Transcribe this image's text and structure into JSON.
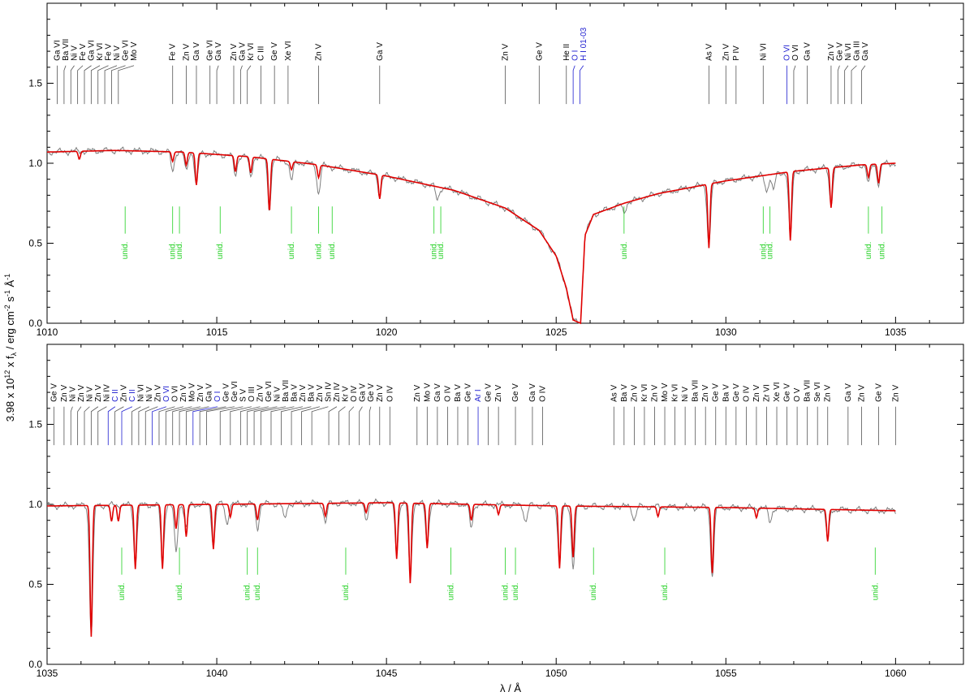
{
  "colors": {
    "observed": "#7f7f7f",
    "model": "#e00000",
    "ism_marker": "#2020d0",
    "unid_marker": "#20d020",
    "id_marker": "#555555",
    "axis": "#000000"
  },
  "labels": {
    "ylabel_prefix": "3.98 x 10",
    "ylabel_exp": "12",
    "ylabel_mid": " x f",
    "ylabel_sub": "λ",
    "ylabel_unit": " / erg cm",
    "ylabel_exp2": "-2",
    "ylabel_s": " s",
    "ylabel_exp3": "-1",
    "ylabel_A": " Å",
    "ylabel_exp4": "-1",
    "xlabel": "λ / Å",
    "unid": "unid."
  },
  "chart_data": [
    {
      "type": "line",
      "panel": "top",
      "xlim": [
        1010,
        1037
      ],
      "ylim": [
        0,
        2.0
      ],
      "xticks": [
        1010,
        1015,
        1020,
        1025,
        1030,
        1035
      ],
      "yticks": [
        0.0,
        0.5,
        1.0,
        1.5
      ],
      "ytick_labels": [
        "0.0",
        "0.5",
        "1.0",
        "1.5"
      ],
      "grid": false,
      "series": [
        {
          "role": "observed",
          "color": "#7f7f7f"
        },
        {
          "role": "model",
          "color": "#e00000"
        }
      ],
      "continuum_profile": [
        [
          1010,
          1.07
        ],
        [
          1012,
          1.08
        ],
        [
          1014,
          1.07
        ],
        [
          1016,
          1.04
        ],
        [
          1018,
          0.99
        ],
        [
          1020,
          0.92
        ],
        [
          1022,
          0.83
        ],
        [
          1023.5,
          0.72
        ],
        [
          1024.5,
          0.58
        ],
        [
          1025.0,
          0.42
        ],
        [
          1025.3,
          0.22
        ],
        [
          1025.5,
          0.02
        ],
        [
          1025.72,
          0.0
        ],
        [
          1025.85,
          0.55
        ],
        [
          1026.1,
          0.68
        ],
        [
          1027,
          0.75
        ],
        [
          1028,
          0.81
        ],
        [
          1029,
          0.85
        ],
        [
          1030,
          0.89
        ],
        [
          1031,
          0.92
        ],
        [
          1032,
          0.95
        ],
        [
          1033,
          0.97
        ],
        [
          1034,
          0.99
        ],
        [
          1035,
          1.0
        ]
      ],
      "model_absorption_lines": [
        [
          1014.4,
          0.2
        ],
        [
          1015.55,
          0.1
        ],
        [
          1016.55,
          0.33
        ],
        [
          1016.0,
          0.1
        ],
        [
          1019.8,
          0.15
        ],
        [
          1029.5,
          0.4
        ],
        [
          1031.9,
          0.43
        ],
        [
          1033.1,
          0.25
        ],
        [
          1034.5,
          0.12
        ],
        [
          1010.95,
          0.05
        ],
        [
          1013.7,
          0.06
        ],
        [
          1014.1,
          0.08
        ],
        [
          1017.2,
          0.05
        ],
        [
          1018.0,
          0.08
        ],
        [
          1034.2,
          0.08
        ]
      ],
      "observed_absorption_lines": [
        [
          1014.4,
          0.2
        ],
        [
          1015.55,
          0.12
        ],
        [
          1016.55,
          0.3
        ],
        [
          1016.0,
          0.12
        ],
        [
          1019.8,
          0.12
        ],
        [
          1029.5,
          0.38
        ],
        [
          1031.9,
          0.4
        ],
        [
          1033.1,
          0.22
        ],
        [
          1034.5,
          0.12
        ],
        [
          1013.7,
          0.12
        ],
        [
          1014.1,
          0.12
        ],
        [
          1017.2,
          0.12
        ],
        [
          1018.0,
          0.18
        ],
        [
          1021.5,
          0.08
        ],
        [
          1027.0,
          0.06
        ],
        [
          1031.2,
          0.1
        ],
        [
          1031.4,
          0.1
        ],
        [
          1034.2,
          0.12
        ]
      ],
      "line_ids": [
        {
          "x": 1010.3,
          "label": "Ga VI",
          "kind": "id"
        },
        {
          "x": 1010.5,
          "label": "Ba VII",
          "kind": "id"
        },
        {
          "x": 1010.7,
          "label": "Ni V",
          "kind": "id"
        },
        {
          "x": 1010.9,
          "label": "Fe V",
          "kind": "id"
        },
        {
          "x": 1011.1,
          "label": "Ga VI",
          "kind": "id"
        },
        {
          "x": 1011.3,
          "label": "Kr VI",
          "kind": "id"
        },
        {
          "x": 1011.5,
          "label": "Fe V",
          "kind": "id"
        },
        {
          "x": 1011.7,
          "label": "Ni V",
          "kind": "id"
        },
        {
          "x": 1011.9,
          "label": "Ge VI",
          "kind": "id"
        },
        {
          "x": 1012.1,
          "label": "Mo V",
          "kind": "id"
        },
        {
          "x": 1013.7,
          "label": "Fe V",
          "kind": "id"
        },
        {
          "x": 1014.1,
          "label": "Zn V",
          "kind": "id"
        },
        {
          "x": 1014.4,
          "label": "Ga V",
          "kind": "id"
        },
        {
          "x": 1014.8,
          "label": "Ge VI",
          "kind": "id"
        },
        {
          "x": 1015.0,
          "label": "Ga V",
          "kind": "id"
        },
        {
          "x": 1015.5,
          "label": "Zn V",
          "kind": "id"
        },
        {
          "x": 1015.7,
          "label": "Ga V",
          "kind": "id"
        },
        {
          "x": 1015.9,
          "label": "Kr VI",
          "kind": "id"
        },
        {
          "x": 1016.3,
          "label": "C III",
          "kind": "id"
        },
        {
          "x": 1016.7,
          "label": "Ge V",
          "kind": "id"
        },
        {
          "x": 1017.1,
          "label": "Xe VI",
          "kind": "id"
        },
        {
          "x": 1018.0,
          "label": "Zn V",
          "kind": "id"
        },
        {
          "x": 1019.8,
          "label": "Ga V",
          "kind": "id"
        },
        {
          "x": 1023.5,
          "label": "Zn V",
          "kind": "id"
        },
        {
          "x": 1024.5,
          "label": "Ge V",
          "kind": "id"
        },
        {
          "x": 1025.3,
          "label": "He II",
          "kind": "id"
        },
        {
          "x": 1025.5,
          "label": "O I",
          "kind": "ism"
        },
        {
          "x": 1025.7,
          "label": "H I 01-03",
          "kind": "ism"
        },
        {
          "x": 1029.5,
          "label": "As V",
          "kind": "id"
        },
        {
          "x": 1030.0,
          "label": "Zn V",
          "kind": "id"
        },
        {
          "x": 1030.3,
          "label": "P IV",
          "kind": "id"
        },
        {
          "x": 1031.1,
          "label": "Ni VI",
          "kind": "id"
        },
        {
          "x": 1031.8,
          "label": "O VI",
          "kind": "ism"
        },
        {
          "x": 1032.0,
          "label": "O VI",
          "kind": "id"
        },
        {
          "x": 1032.4,
          "label": "Ga V",
          "kind": "id"
        },
        {
          "x": 1033.1,
          "label": "Zn V",
          "kind": "id"
        },
        {
          "x": 1033.3,
          "label": "Ge V",
          "kind": "id"
        },
        {
          "x": 1033.5,
          "label": "Ni VI",
          "kind": "id"
        },
        {
          "x": 1033.7,
          "label": "Ga III",
          "kind": "id"
        },
        {
          "x": 1034.0,
          "label": "Ga V",
          "kind": "id"
        }
      ],
      "unid_positions": [
        1012.3,
        1013.7,
        1013.9,
        1015.1,
        1017.2,
        1018.0,
        1018.4,
        1021.4,
        1021.6,
        1027.0,
        1031.1,
        1031.3,
        1034.2,
        1034.6
      ]
    },
    {
      "type": "line",
      "panel": "bottom",
      "xlim": [
        1035,
        1062
      ],
      "ylim": [
        0,
        2.0
      ],
      "xticks": [
        1035,
        1040,
        1045,
        1050,
        1055,
        1060
      ],
      "yticks": [
        0.0,
        0.5,
        1.0,
        1.5
      ],
      "ytick_labels": [
        "0.0",
        "0.5",
        "1.0",
        "1.5"
      ],
      "grid": false,
      "xlabel": "λ / Å",
      "series": [
        {
          "role": "observed",
          "color": "#7f7f7f"
        },
        {
          "role": "model",
          "color": "#e00000"
        }
      ],
      "continuum_profile": [
        [
          1035,
          0.99
        ],
        [
          1040,
          1.0
        ],
        [
          1045,
          1.01
        ],
        [
          1050,
          0.99
        ],
        [
          1055,
          0.98
        ],
        [
          1060,
          0.96
        ]
      ],
      "model_absorption_lines": [
        [
          1036.3,
          0.82
        ],
        [
          1037.6,
          0.4
        ],
        [
          1038.4,
          0.4
        ],
        [
          1038.8,
          0.15
        ],
        [
          1039.1,
          0.2
        ],
        [
          1039.9,
          0.28
        ],
        [
          1041.2,
          0.1
        ],
        [
          1043.2,
          0.08
        ],
        [
          1045.3,
          0.35
        ],
        [
          1045.7,
          0.5
        ],
        [
          1046.2,
          0.28
        ],
        [
          1047.5,
          0.1
        ],
        [
          1050.1,
          0.39
        ],
        [
          1050.5,
          0.32
        ],
        [
          1054.6,
          0.41
        ],
        [
          1058.0,
          0.2
        ],
        [
          1036.9,
          0.1
        ],
        [
          1037.1,
          0.1
        ],
        [
          1040.4,
          0.08
        ],
        [
          1044.4,
          0.06
        ],
        [
          1048.3,
          0.06
        ],
        [
          1053.0,
          0.06
        ],
        [
          1055.9,
          0.06
        ]
      ],
      "observed_absorption_lines": [
        [
          1036.3,
          0.8
        ],
        [
          1037.6,
          0.35
        ],
        [
          1038.4,
          0.35
        ],
        [
          1038.8,
          0.3
        ],
        [
          1039.1,
          0.15
        ],
        [
          1039.9,
          0.25
        ],
        [
          1041.2,
          0.15
        ],
        [
          1043.2,
          0.12
        ],
        [
          1045.3,
          0.3
        ],
        [
          1045.7,
          0.45
        ],
        [
          1046.2,
          0.25
        ],
        [
          1047.5,
          0.15
        ],
        [
          1050.1,
          0.35
        ],
        [
          1050.5,
          0.38
        ],
        [
          1054.6,
          0.42
        ],
        [
          1058.0,
          0.18
        ],
        [
          1040.3,
          0.12
        ],
        [
          1042.0,
          0.1
        ],
        [
          1044.4,
          0.1
        ],
        [
          1049.1,
          0.1
        ],
        [
          1052.3,
          0.08
        ],
        [
          1056.3,
          0.08
        ]
      ],
      "line_ids": [
        {
          "x": 1035.2,
          "label": "Ge V",
          "kind": "id"
        },
        {
          "x": 1035.5,
          "label": "Zn V",
          "kind": "id"
        },
        {
          "x": 1035.7,
          "label": "Ni V",
          "kind": "id"
        },
        {
          "x": 1035.9,
          "label": "Zn V",
          "kind": "id"
        },
        {
          "x": 1036.1,
          "label": "Ni V",
          "kind": "id"
        },
        {
          "x": 1036.3,
          "label": "Zn V",
          "kind": "id"
        },
        {
          "x": 1036.5,
          "label": "Ni IV",
          "kind": "id"
        },
        {
          "x": 1036.8,
          "label": "C II",
          "kind": "ism"
        },
        {
          "x": 1037.0,
          "label": "Zn V",
          "kind": "id"
        },
        {
          "x": 1037.2,
          "label": "C II",
          "kind": "ism"
        },
        {
          "x": 1037.5,
          "label": "Ni VI",
          "kind": "id"
        },
        {
          "x": 1037.7,
          "label": "Ni V",
          "kind": "id"
        },
        {
          "x": 1037.9,
          "label": "Zn V",
          "kind": "id"
        },
        {
          "x": 1038.1,
          "label": "O VI",
          "kind": "ism"
        },
        {
          "x": 1038.3,
          "label": "O VI",
          "kind": "id"
        },
        {
          "x": 1038.5,
          "label": "Zn V",
          "kind": "id"
        },
        {
          "x": 1038.7,
          "label": "Mo V",
          "kind": "id"
        },
        {
          "x": 1038.9,
          "label": "Zn V",
          "kind": "id"
        },
        {
          "x": 1039.1,
          "label": "Ga V",
          "kind": "id"
        },
        {
          "x": 1039.3,
          "label": "O I",
          "kind": "ism"
        },
        {
          "x": 1039.5,
          "label": "Ge V",
          "kind": "id"
        },
        {
          "x": 1039.7,
          "label": "Ge VI",
          "kind": "id"
        },
        {
          "x": 1040.1,
          "label": "S V",
          "kind": "id"
        },
        {
          "x": 1040.4,
          "label": "O III",
          "kind": "id"
        },
        {
          "x": 1040.7,
          "label": "Zn V",
          "kind": "id"
        },
        {
          "x": 1040.9,
          "label": "Ge VI",
          "kind": "id"
        },
        {
          "x": 1041.1,
          "label": "Ni V",
          "kind": "id"
        },
        {
          "x": 1041.3,
          "label": "Ba VII",
          "kind": "id"
        },
        {
          "x": 1041.6,
          "label": "Ba V",
          "kind": "id"
        },
        {
          "x": 1041.9,
          "label": "Zn V",
          "kind": "id"
        },
        {
          "x": 1042.2,
          "label": "Ba V",
          "kind": "id"
        },
        {
          "x": 1042.5,
          "label": "Zn V",
          "kind": "id"
        },
        {
          "x": 1042.8,
          "label": "Sn IV",
          "kind": "id"
        },
        {
          "x": 1043.3,
          "label": "Zn IV",
          "kind": "id"
        },
        {
          "x": 1043.6,
          "label": "Kr V",
          "kind": "id"
        },
        {
          "x": 1043.9,
          "label": "O IV",
          "kind": "id"
        },
        {
          "x": 1044.2,
          "label": "Ga V",
          "kind": "id"
        },
        {
          "x": 1044.5,
          "label": "Ge V",
          "kind": "id"
        },
        {
          "x": 1044.8,
          "label": "Zn V",
          "kind": "id"
        },
        {
          "x": 1045.1,
          "label": "O IV",
          "kind": "id"
        },
        {
          "x": 1045.9,
          "label": "Zn V",
          "kind": "id"
        },
        {
          "x": 1046.2,
          "label": "Mo V",
          "kind": "id"
        },
        {
          "x": 1046.5,
          "label": "Ga V",
          "kind": "id"
        },
        {
          "x": 1046.8,
          "label": "O IV",
          "kind": "id"
        },
        {
          "x": 1047.1,
          "label": "Ba V",
          "kind": "id"
        },
        {
          "x": 1047.4,
          "label": "Ge V",
          "kind": "id"
        },
        {
          "x": 1047.7,
          "label": "Ar I",
          "kind": "ism"
        },
        {
          "x": 1048.0,
          "label": "Ge V",
          "kind": "id"
        },
        {
          "x": 1048.3,
          "label": "Zn V",
          "kind": "id"
        },
        {
          "x": 1048.8,
          "label": "Ge V",
          "kind": "id"
        },
        {
          "x": 1049.3,
          "label": "Ga V",
          "kind": "id"
        },
        {
          "x": 1049.6,
          "label": "O IV",
          "kind": "id"
        },
        {
          "x": 1051.7,
          "label": "As V",
          "kind": "id"
        },
        {
          "x": 1052.0,
          "label": "Ba V",
          "kind": "id"
        },
        {
          "x": 1052.3,
          "label": "Zn V",
          "kind": "id"
        },
        {
          "x": 1052.6,
          "label": "Kr VI",
          "kind": "id"
        },
        {
          "x": 1052.9,
          "label": "Zn V",
          "kind": "id"
        },
        {
          "x": 1053.2,
          "label": "Mo V",
          "kind": "id"
        },
        {
          "x": 1053.5,
          "label": "Kr VI",
          "kind": "id"
        },
        {
          "x": 1053.8,
          "label": "Ni V",
          "kind": "id"
        },
        {
          "x": 1054.1,
          "label": "Ba VII",
          "kind": "id"
        },
        {
          "x": 1054.4,
          "label": "Zn V",
          "kind": "id"
        },
        {
          "x": 1054.7,
          "label": "Ge V",
          "kind": "id"
        },
        {
          "x": 1055.0,
          "label": "Ba V",
          "kind": "id"
        },
        {
          "x": 1055.3,
          "label": "Ge V",
          "kind": "id"
        },
        {
          "x": 1055.6,
          "label": "O IV",
          "kind": "id"
        },
        {
          "x": 1055.9,
          "label": "Zn V",
          "kind": "id"
        },
        {
          "x": 1056.2,
          "label": "Zr VI",
          "kind": "id"
        },
        {
          "x": 1056.5,
          "label": "Xe VI",
          "kind": "id"
        },
        {
          "x": 1056.8,
          "label": "Ge V",
          "kind": "id"
        },
        {
          "x": 1057.1,
          "label": "O V",
          "kind": "id"
        },
        {
          "x": 1057.4,
          "label": "Ba VII",
          "kind": "id"
        },
        {
          "x": 1057.7,
          "label": "Se VI",
          "kind": "id"
        },
        {
          "x": 1058.0,
          "label": "Zn V",
          "kind": "id"
        },
        {
          "x": 1058.6,
          "label": "Ga V",
          "kind": "id"
        },
        {
          "x": 1059.0,
          "label": "Zn V",
          "kind": "id"
        },
        {
          "x": 1059.5,
          "label": "Ge V",
          "kind": "id"
        },
        {
          "x": 1060.0,
          "label": "Zn V",
          "kind": "id"
        }
      ],
      "unid_positions": [
        1037.2,
        1038.9,
        1040.9,
        1041.2,
        1043.8,
        1046.9,
        1048.5,
        1048.8,
        1051.1,
        1053.2,
        1059.4
      ]
    }
  ]
}
